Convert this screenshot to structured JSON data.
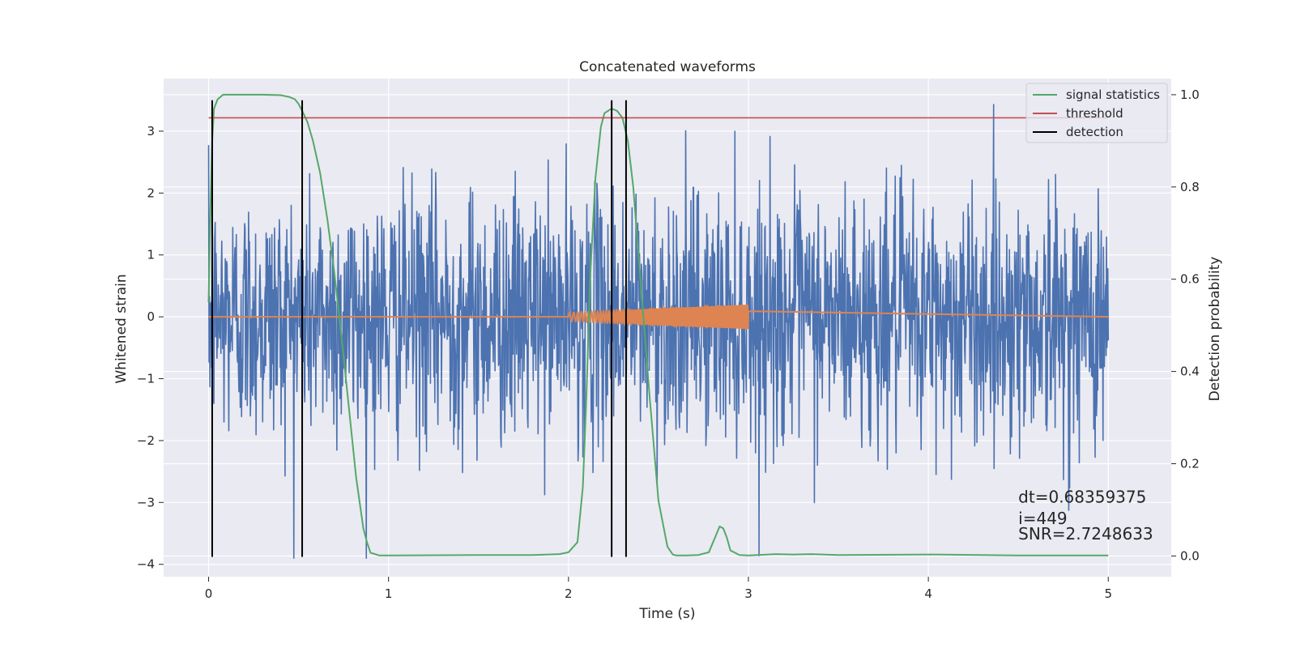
{
  "chart_data": {
    "type": "line",
    "title": "Concatenated waveforms",
    "xlabel": "Time (s)",
    "ylabel_left": "Whitened strain",
    "ylabel_right": "Detection probability",
    "xlim": [
      -0.25,
      5.35
    ],
    "ylim_left": [
      -4.2,
      3.85
    ],
    "ylim_right": [
      -0.045,
      1.035
    ],
    "xticks": [
      0,
      1,
      2,
      3,
      4,
      5
    ],
    "xtick_labels": [
      "0",
      "1",
      "2",
      "3",
      "4",
      "5"
    ],
    "yticks_left": [
      -4,
      -3,
      -2,
      -1,
      0,
      1,
      2,
      3
    ],
    "ytick_labels_left": [
      "−4",
      "−3",
      "−2",
      "−1",
      "0",
      "1",
      "2",
      "3"
    ],
    "yticks_right": [
      0.0,
      0.2,
      0.4,
      0.6,
      0.8,
      1.0
    ],
    "ytick_labels_right": [
      "0.0",
      "0.2",
      "0.4",
      "0.6",
      "0.8",
      "1.0"
    ],
    "grid": true,
    "legend_position": "top-right",
    "series": [
      {
        "id": "strain",
        "axis": "left",
        "color": "#4c72b0",
        "description_kind": "noise",
        "t_range": [
          0,
          5
        ],
        "samples": 2049,
        "amplitude_std": 1.0,
        "extremes": {
          "max": 3.5,
          "min": -3.9
        }
      },
      {
        "id": "injected",
        "axis": "left",
        "color": "#dd8452",
        "description_kind": "chirp",
        "flat_value": 0,
        "chirp_t": [
          2.0,
          3.0
        ],
        "chirp_amplitude": [
          0.07,
          0.2
        ],
        "chirp_frequency_hz": [
          40,
          170
        ]
      },
      {
        "name": "signal statistics",
        "axis": "right",
        "color": "#55a868",
        "x": [
          0.0,
          0.01,
          0.02,
          0.03,
          0.05,
          0.08,
          0.15,
          0.3,
          0.4,
          0.45,
          0.48,
          0.5,
          0.52,
          0.55,
          0.58,
          0.62,
          0.66,
          0.7,
          0.74,
          0.78,
          0.82,
          0.86,
          0.88,
          0.9,
          0.95,
          1.0,
          1.5,
          1.8,
          1.95,
          2.0,
          2.05,
          2.08,
          2.1,
          2.12,
          2.15,
          2.18,
          2.2,
          2.24,
          2.27,
          2.3,
          2.33,
          2.36,
          2.4,
          2.45,
          2.5,
          2.55,
          2.58,
          2.6,
          2.65,
          2.72,
          2.78,
          2.82,
          2.84,
          2.86,
          2.88,
          2.9,
          2.95,
          3.0,
          3.05,
          3.15,
          3.25,
          3.35,
          3.5,
          4.0,
          4.05,
          4.5,
          5.0
        ],
        "y": [
          0.55,
          0.75,
          0.9,
          0.97,
          0.99,
          1.0,
          1.0,
          1.0,
          0.999,
          0.995,
          0.99,
          0.98,
          0.965,
          0.94,
          0.9,
          0.83,
          0.73,
          0.61,
          0.47,
          0.32,
          0.17,
          0.06,
          0.03,
          0.007,
          0.001,
          0.001,
          0.002,
          0.002,
          0.004,
          0.008,
          0.03,
          0.15,
          0.35,
          0.6,
          0.82,
          0.93,
          0.96,
          0.97,
          0.965,
          0.95,
          0.9,
          0.8,
          0.6,
          0.35,
          0.12,
          0.02,
          0.003,
          0.001,
          0.001,
          0.002,
          0.008,
          0.045,
          0.064,
          0.06,
          0.04,
          0.012,
          0.002,
          0.001,
          0.002,
          0.004,
          0.003,
          0.004,
          0.002,
          0.003,
          0.003,
          0.001,
          0.001
        ]
      },
      {
        "name": "threshold",
        "axis": "right",
        "color": "#c44e52",
        "x": [
          0,
          5
        ],
        "y": [
          0.95,
          0.95
        ]
      },
      {
        "name": "detection",
        "axis": "left",
        "color": "#000000",
        "x_positions": [
          0.02,
          0.52,
          2.24,
          2.32
        ],
        "y_range": [
          -3.88,
          3.5
        ]
      }
    ],
    "annotations": [
      {
        "text": "dt=0.68359375",
        "x": 4.5,
        "y": -3.0
      },
      {
        "text": " i=449",
        "x": 4.5,
        "y": -3.35
      },
      {
        "text": "SNR=2.7248633",
        "x": 4.5,
        "y": -3.6
      }
    ]
  }
}
